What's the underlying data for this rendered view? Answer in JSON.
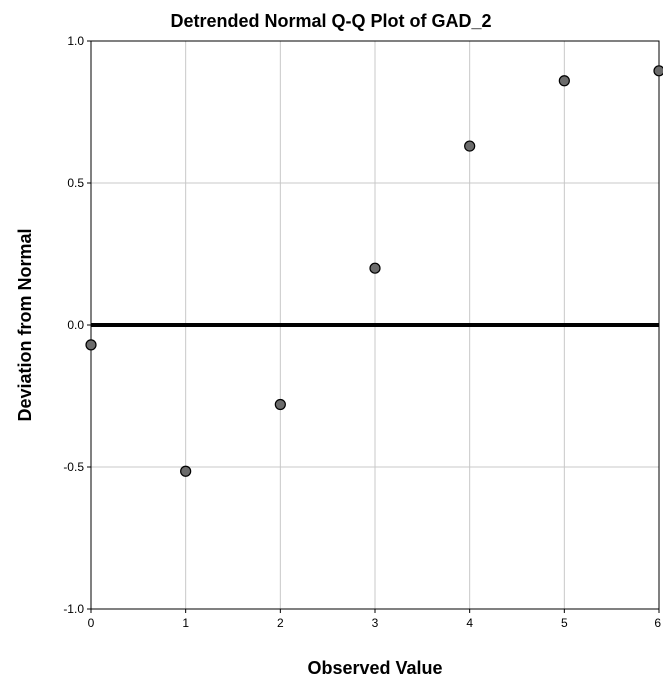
{
  "chart_data": {
    "type": "scatter",
    "title": "Detrended Normal Q-Q Plot of GAD_2",
    "xlabel": "Observed Value",
    "ylabel": "Deviation from Normal",
    "xlim": [
      0,
      6
    ],
    "ylim": [
      -1.0,
      1.0
    ],
    "x_ticks": [
      0,
      1,
      2,
      3,
      4,
      5,
      6
    ],
    "x_tick_labels": [
      "0",
      "1",
      "2",
      "3",
      "4",
      "5",
      "6"
    ],
    "y_ticks": [
      -1.0,
      -0.5,
      0.0,
      0.5,
      1.0
    ],
    "y_tick_labels": [
      "-1.0",
      "-0.5",
      "0.0",
      "0.5",
      "1.0"
    ],
    "grid": true,
    "reference_line": {
      "y": 0.0
    },
    "points": [
      {
        "x": 0,
        "y": -0.07
      },
      {
        "x": 1,
        "y": -0.515
      },
      {
        "x": 2,
        "y": -0.28
      },
      {
        "x": 3,
        "y": 0.2
      },
      {
        "x": 4,
        "y": 0.63
      },
      {
        "x": 5,
        "y": 0.86
      },
      {
        "x": 6,
        "y": 0.895
      }
    ],
    "colors": {
      "marker_fill": "#6b6b6b",
      "marker_stroke": "#000000",
      "grid": "#c8c8c8",
      "frame": "#000000",
      "reference_line": "#000000"
    }
  }
}
